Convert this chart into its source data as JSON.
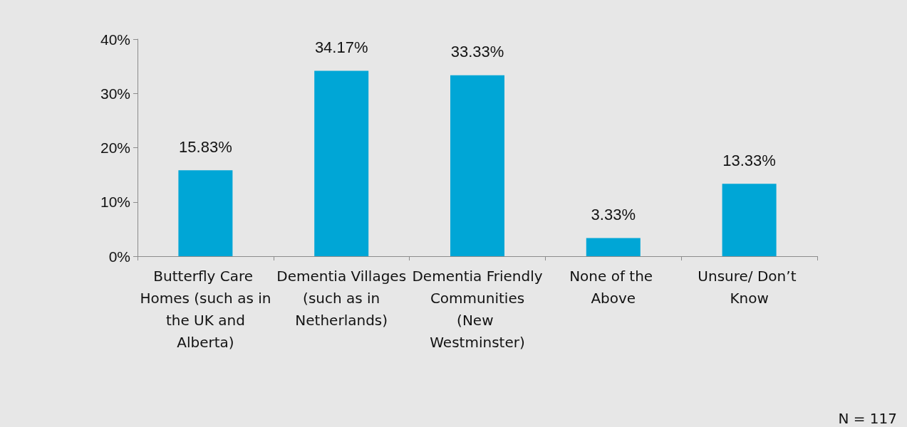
{
  "chart_data": {
    "type": "bar",
    "categories": [
      "Butterfly Care Homes (such as in the UK and Alberta)",
      "Dementia Villages (such as in Netherlands)",
      "Dementia Friendly Communities (New Westminster)",
      "None of the Above",
      "Unsure/ Don’t Know"
    ],
    "values": [
      15.83,
      34.17,
      33.33,
      3.33,
      13.33
    ],
    "value_labels": [
      "15.83%",
      "34.17%",
      "33.33%",
      "3.33%",
      "13.33%"
    ],
    "color": "#00a6d6",
    "ylim": [
      0,
      40
    ],
    "yticks": [
      {
        "value": 0,
        "label": "0%"
      },
      {
        "value": 10,
        "label": "10%"
      },
      {
        "value": 20,
        "label": "20%"
      },
      {
        "value": 30,
        "label": "30%"
      },
      {
        "value": 40,
        "label": "40%"
      }
    ],
    "grid": false,
    "annotations": [
      "N = 117"
    ]
  }
}
